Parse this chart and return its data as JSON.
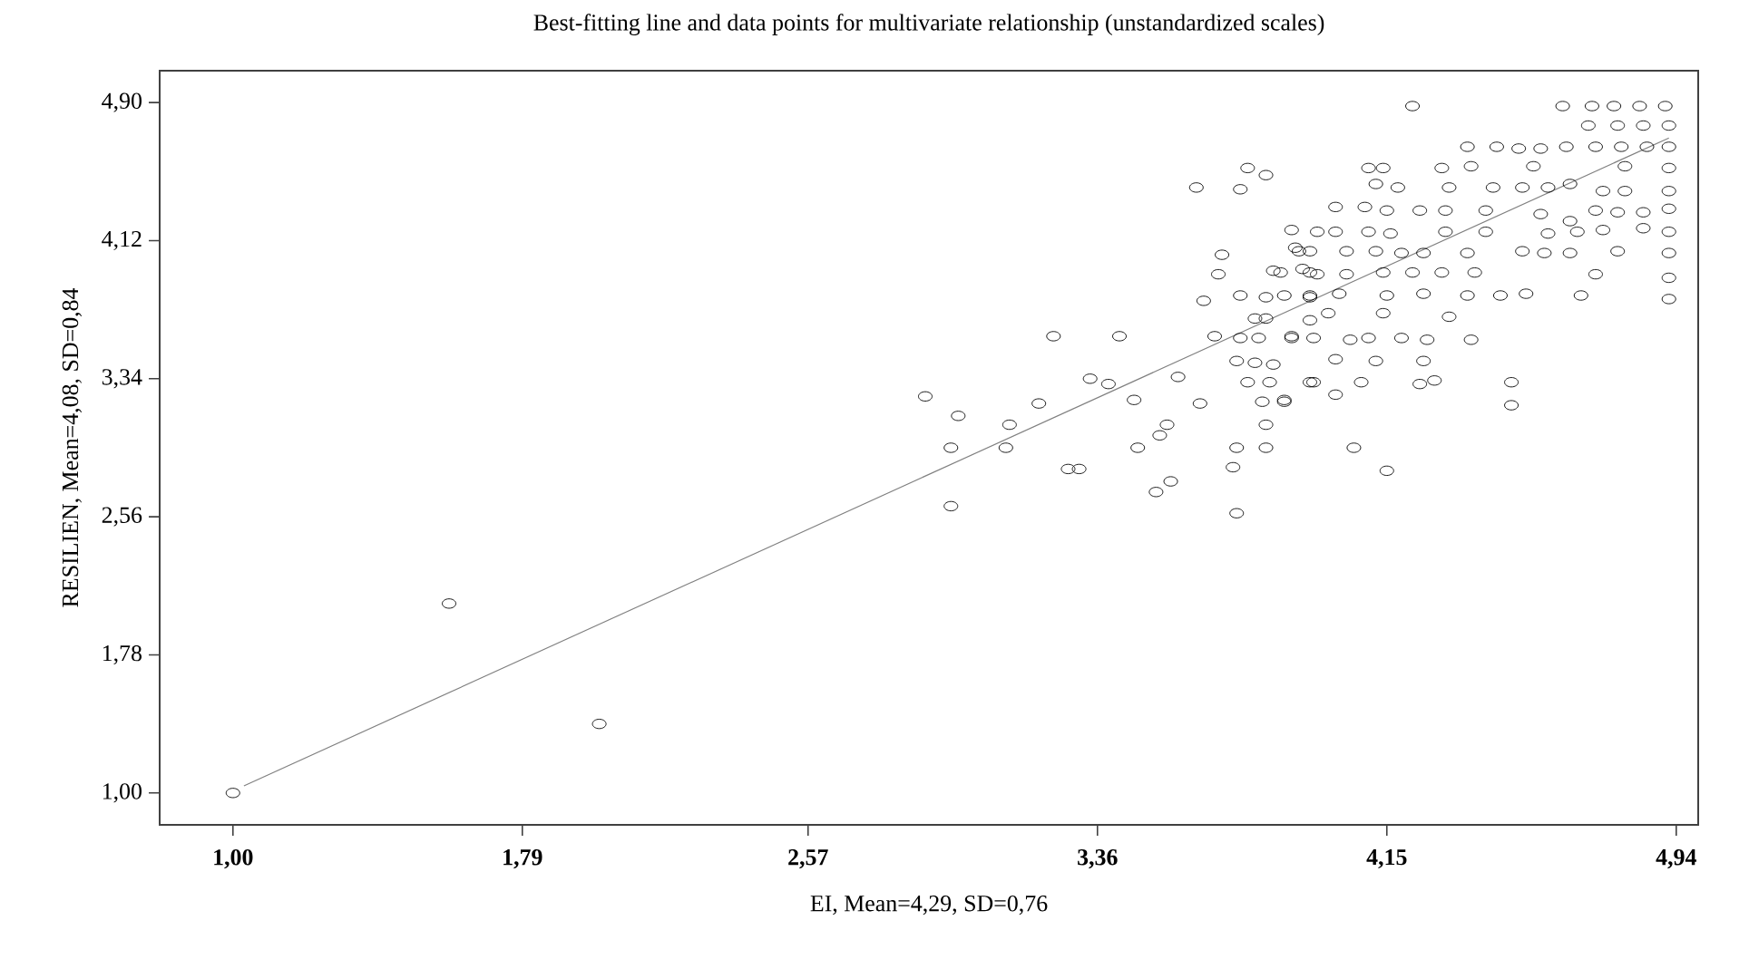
{
  "chart_data": {
    "type": "scatter",
    "title": "Best-fitting line and data points for multivariate relationship (unstandardized scales)",
    "xlabel": "EI, Mean=4,29, SD=0,76",
    "ylabel": "RESILIEN, Mean=4,08, SD=0,84",
    "xlim": [
      0.8,
      5.0
    ],
    "ylim": [
      0.82,
      5.08
    ],
    "xticks": [
      {
        "value": 1.0,
        "label": "1,00"
      },
      {
        "value": 1.79,
        "label": "1,79"
      },
      {
        "value": 2.57,
        "label": "2,57"
      },
      {
        "value": 3.36,
        "label": "3,36"
      },
      {
        "value": 4.15,
        "label": "4,15"
      },
      {
        "value": 4.94,
        "label": "4,94"
      }
    ],
    "yticks": [
      {
        "value": 1.0,
        "label": "1,00"
      },
      {
        "value": 1.78,
        "label": "1,78"
      },
      {
        "value": 2.56,
        "label": "2,56"
      },
      {
        "value": 3.34,
        "label": "3,34"
      },
      {
        "value": 4.12,
        "label": "4,12"
      },
      {
        "value": 4.9,
        "label": "4,90"
      }
    ],
    "series": [
      {
        "type": "scatter",
        "marker": "circle",
        "color": "#000000",
        "x": [
          4.22,
          4.63,
          4.71,
          4.77,
          4.84,
          4.91,
          4.7,
          4.78,
          4.85,
          4.92,
          4.37,
          4.45,
          4.51,
          4.57,
          4.64,
          4.72,
          4.79,
          4.86,
          4.92,
          4.1,
          4.14,
          4.3,
          4.38,
          4.55,
          4.8,
          4.92,
          4.12,
          4.18,
          4.32,
          4.44,
          4.52,
          4.59,
          4.65,
          4.74,
          4.8,
          4.92,
          4.01,
          4.09,
          4.15,
          4.24,
          4.31,
          4.42,
          4.57,
          4.65,
          4.72,
          4.78,
          4.85,
          4.92,
          3.89,
          3.96,
          4.01,
          4.1,
          4.16,
          4.31,
          4.42,
          4.59,
          4.67,
          4.74,
          4.85,
          4.92,
          3.91,
          4.04,
          4.12,
          4.19,
          4.25,
          4.37,
          4.52,
          4.58,
          4.65,
          4.78,
          4.92,
          3.86,
          3.94,
          4.04,
          4.14,
          4.22,
          4.3,
          4.39,
          4.72,
          4.92,
          3.94,
          4.02,
          4.15,
          4.25,
          4.37,
          4.46,
          4.53,
          4.68,
          4.92,
          3.99,
          4.14,
          4.32,
          3.89,
          4.05,
          4.1,
          4.19,
          4.26,
          4.38,
          4.01,
          4.12,
          4.25,
          3.94,
          4.08,
          4.24,
          4.28,
          4.49,
          3.87,
          4.01,
          4.49,
          4.06,
          4.15,
          3.77,
          3.82,
          3.63,
          3.75,
          3.9,
          3.94,
          3.7,
          3.69,
          3.84,
          3.92,
          3.96,
          3.75,
          3.82,
          3.87,
          3.94,
          3.65,
          3.79,
          3.82,
          3.94,
          3.68,
          3.75,
          3.8,
          3.89,
          3.95,
          3.24,
          3.42,
          3.74,
          3.79,
          3.84,
          3.95,
          3.77,
          3.83,
          3.58,
          3.34,
          3.39,
          2.89,
          2.98,
          3.2,
          3.12,
          3.46,
          3.64,
          3.81,
          3.87,
          3.55,
          3.53,
          3.82,
          2.96,
          3.11,
          3.47,
          3.74,
          3.82,
          3.28,
          3.31,
          3.73,
          3.56,
          3.52,
          2.96,
          3.74,
          1.0,
          1.59,
          2.0
        ],
        "values": [
          4.88,
          4.88,
          4.88,
          4.88,
          4.88,
          4.88,
          4.77,
          4.77,
          4.77,
          4.77,
          4.65,
          4.65,
          4.64,
          4.64,
          4.65,
          4.65,
          4.65,
          4.65,
          4.65,
          4.53,
          4.53,
          4.53,
          4.54,
          4.54,
          4.54,
          4.53,
          4.44,
          4.42,
          4.42,
          4.42,
          4.42,
          4.42,
          4.44,
          4.4,
          4.4,
          4.4,
          4.31,
          4.31,
          4.29,
          4.29,
          4.29,
          4.29,
          4.27,
          4.23,
          4.29,
          4.28,
          4.28,
          4.3,
          4.18,
          4.17,
          4.17,
          4.17,
          4.16,
          4.17,
          4.17,
          4.16,
          4.17,
          4.18,
          4.19,
          4.17,
          4.06,
          4.06,
          4.06,
          4.05,
          4.05,
          4.05,
          4.06,
          4.05,
          4.05,
          4.06,
          4.05,
          3.94,
          3.94,
          3.93,
          3.94,
          3.94,
          3.94,
          3.94,
          3.93,
          3.91,
          3.81,
          3.82,
          3.81,
          3.82,
          3.81,
          3.81,
          3.82,
          3.81,
          3.79,
          3.71,
          3.71,
          3.69,
          3.57,
          3.56,
          3.57,
          3.57,
          3.56,
          3.56,
          3.45,
          3.44,
          3.44,
          3.32,
          3.32,
          3.31,
          3.33,
          3.32,
          3.21,
          3.25,
          3.19,
          2.95,
          2.82,
          4.53,
          4.49,
          4.42,
          4.41,
          4.08,
          4.06,
          4.04,
          3.93,
          3.95,
          3.96,
          3.93,
          3.81,
          3.8,
          3.81,
          3.8,
          3.78,
          3.68,
          3.68,
          3.67,
          3.58,
          3.57,
          3.57,
          3.58,
          3.57,
          3.58,
          3.58,
          3.44,
          3.43,
          3.42,
          3.32,
          3.32,
          3.32,
          3.35,
          3.34,
          3.31,
          3.24,
          3.13,
          3.2,
          3.08,
          3.22,
          3.2,
          3.21,
          3.22,
          3.08,
          3.02,
          3.08,
          2.95,
          2.95,
          2.95,
          2.95,
          2.95,
          2.83,
          2.83,
          2.84,
          2.76,
          2.7,
          2.62,
          2.58,
          1.0,
          2.07,
          1.39
        ]
      },
      {
        "type": "line",
        "marker": "none",
        "color": "#808080",
        "x": [
          1.03,
          4.92
        ],
        "values": [
          1.04,
          4.7
        ]
      }
    ]
  }
}
